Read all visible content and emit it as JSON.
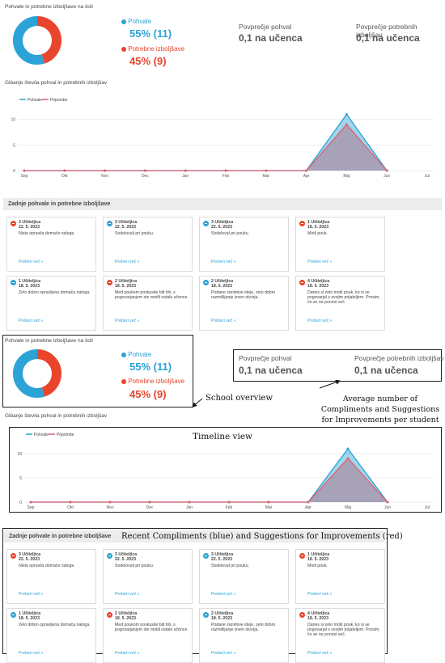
{
  "top": {
    "overview_title": "Pohvale in potrebne izboljšave na šoli",
    "compliments_label": "Pohvale",
    "compliments_value": "55% (11)",
    "improvements_label": "Potrebne izboljšave",
    "improvements_value": "45% (9)",
    "avg_compliments_label": "Povprečje pohval",
    "avg_compliments_value": "0,1 na učenca",
    "avg_improvements_label": "Povprečje potrebnih izboljšav",
    "avg_improvements_value": "0,1 na učenca",
    "donut": {
      "blue_fraction": 0.55,
      "red_fraction": 0.45
    }
  },
  "timeline": {
    "title": "Gibanje števila pohval in potrebnih izboljšav",
    "legend": [
      "Pohvale",
      "Pripombe"
    ]
  },
  "recent": {
    "title": "Zadnje pohvale in potrebne izboljšave",
    "cards": [
      {
        "type": "red",
        "who": "3 Učiteljica",
        "date": "22. 5. 2023",
        "text": "Nista opravila domače naloge.",
        "more": "Preberi več »"
      },
      {
        "type": "blue",
        "who": "3 Učiteljica",
        "date": "22. 5. 2023",
        "text": "Sodelovali pri pouku.",
        "more": "Preberi več »"
      },
      {
        "type": "blue",
        "who": "3 Učiteljica",
        "date": "22. 5. 2023",
        "text": "Sodeloval pri pouku.",
        "more": "Preberi več »"
      },
      {
        "type": "red",
        "who": "1 Učiteljica",
        "date": "18. 5. 2023",
        "text": "Motil pouk.",
        "more": "Preberi več »"
      },
      {
        "type": "blue",
        "who": "1 Učiteljica",
        "date": "18. 5. 2023",
        "text": "Zelo dobro opravljena domača naloga.",
        "more": "Preberi več »"
      },
      {
        "type": "red",
        "who": "2 Učiteljica",
        "date": "18. 5. 2023",
        "text": "Med poukom poskusite biti tiši, s pogovarjanjem ste motili ostale učence.",
        "more": "Preberi več »"
      },
      {
        "type": "blue",
        "who": "2 Učiteljica",
        "date": "18. 5. 2023",
        "text": "Podane zanimive ideje, zelo dobro razmišljanje izven okvirja.",
        "more": "Preberi več »"
      },
      {
        "type": "red",
        "who": "4 Učiteljica",
        "date": "18. 5. 2023",
        "text": "Danes si zelo motil pouk, ko si se pogovarjal s svojim prijateljem. Prosim, če se ne ponovi več.",
        "more": "Preberi več »"
      }
    ]
  },
  "annotations": {
    "school_overview": "School overview",
    "average": "Average number of Compliments and Suggestions for Improvements per student",
    "timeline_view": "Timeline view",
    "recent": "Recent Compliments (blue) and Suggestions for Improvements (red)"
  },
  "chart_data": {
    "type": "area",
    "categories": [
      "Sep",
      "Okt",
      "Nov",
      "Dec",
      "Jan",
      "Feb",
      "Mar",
      "Apr",
      "Maj",
      "Jun",
      "Jul"
    ],
    "series": [
      {
        "name": "Pohvale",
        "values": [
          0,
          0,
          0,
          0,
          0,
          0,
          0,
          0,
          11,
          0,
          null
        ],
        "color": "#2ba3d6"
      },
      {
        "name": "Pripombe",
        "values": [
          0,
          0,
          0,
          0,
          0,
          0,
          0,
          0,
          9,
          0,
          null
        ],
        "color": "#e06070"
      }
    ],
    "yticks": [
      0,
      5,
      10
    ],
    "ylim": [
      0,
      12
    ],
    "grid": true,
    "legend": "top-left"
  }
}
